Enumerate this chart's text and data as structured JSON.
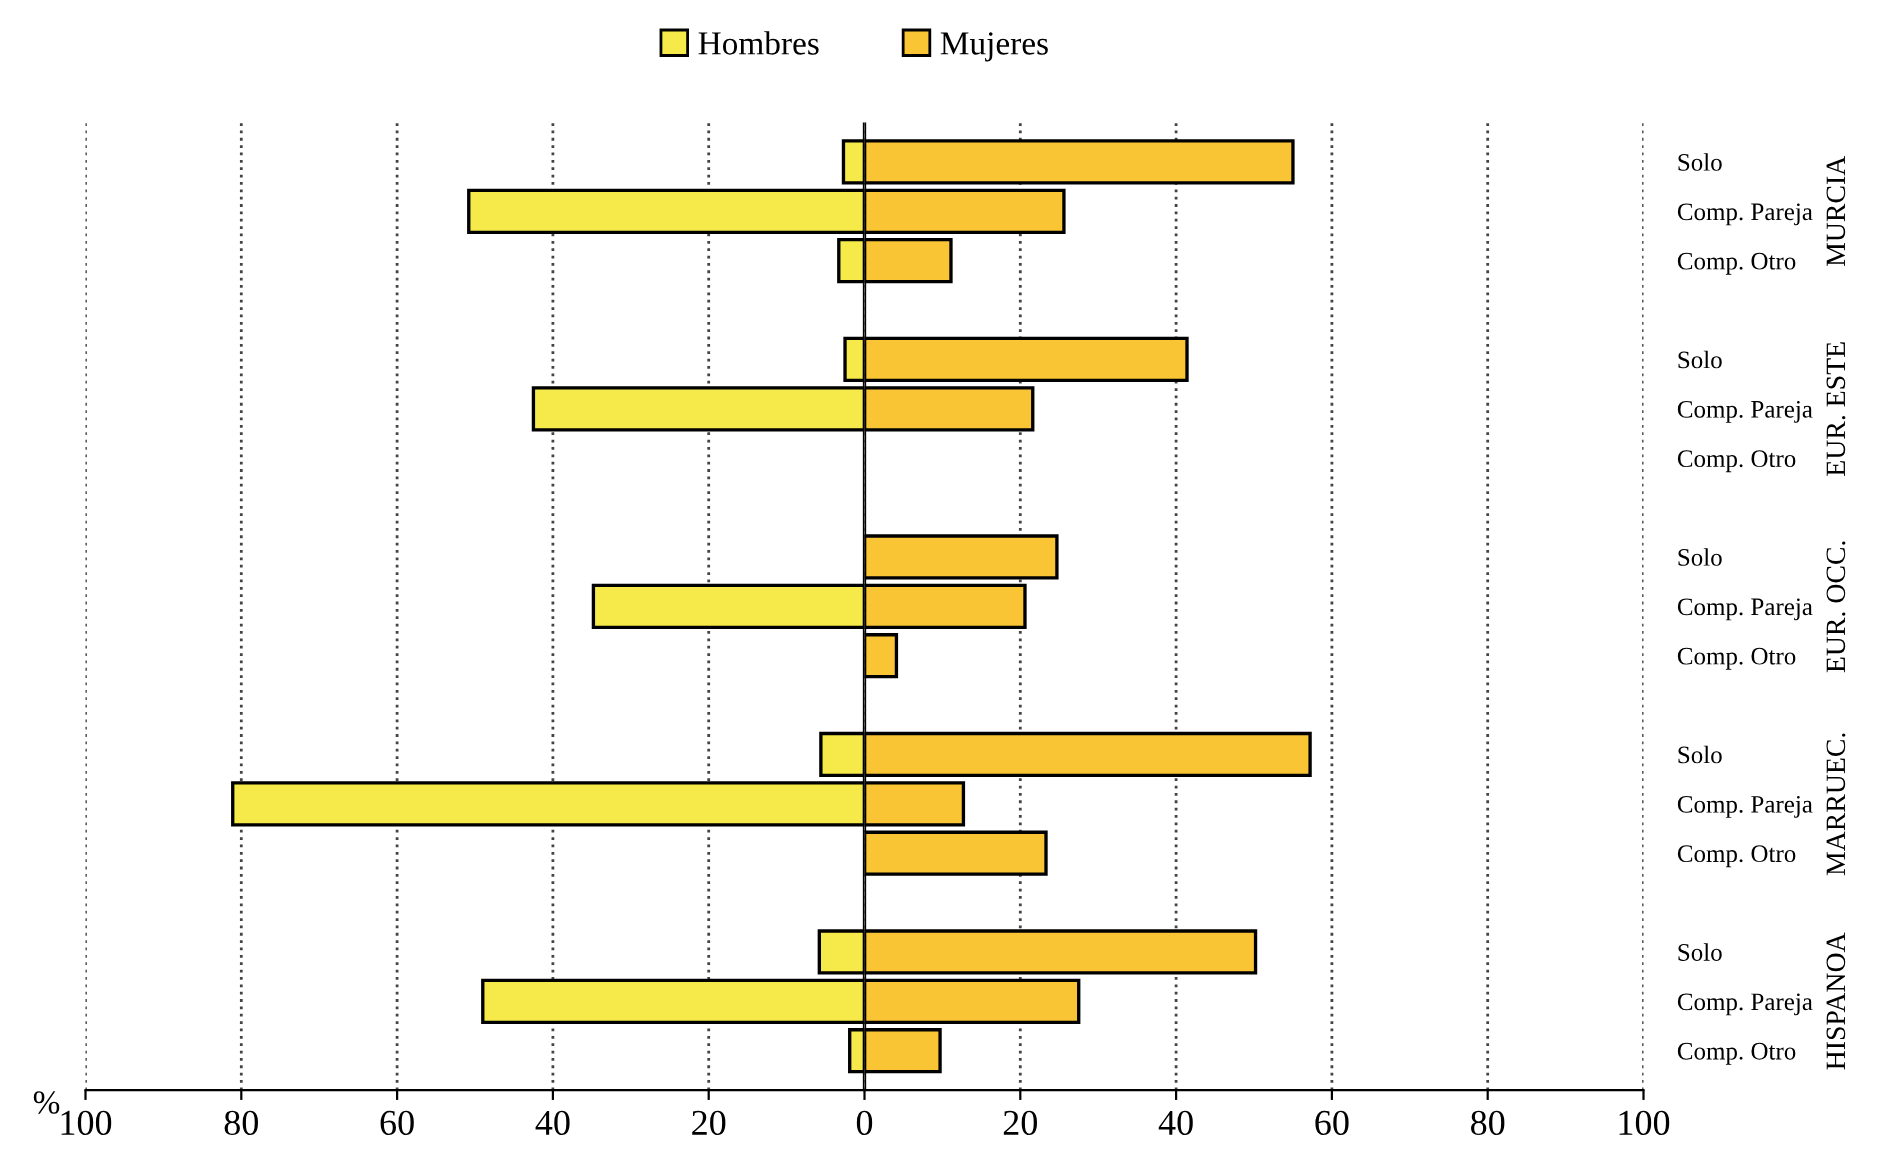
{
  "chart_data": [
    {
      "type": "bar",
      "orientation": "horizontal",
      "xlabel": "%",
      "tick_labels": "x",
      "categories": [
        null,
        null,
        null,
        null,
        null,
        null,
        null,
        null,
        null,
        null,
        null,
        null,
        null,
        null,
        null,
        null,
        null,
        null,
        null
      ],
      "series": [
        {
          "name": "Hombres",
          "color": "#f5ea4a",
          "values": [
            2.7,
            50.8,
            3.3,
            null,
            2.5,
            42.5,
            null,
            null,
            null,
            34.8,
            null,
            null,
            5.6,
            81.1,
            null,
            null,
            5.8,
            49,
            1.9
          ]
        }
      ],
      "xlim": [
        100,
        0
      ],
      "xticks": [
        100,
        80,
        60,
        40,
        20
      ],
      "grid": "x",
      "legend": "top"
    },
    {
      "type": "bar",
      "orientation": "horizontal",
      "annotations": [
        "MURCIA",
        "EUR. ESTE",
        "EUR. OCC.",
        "MARRUEC.",
        "HISPANOA"
      ],
      "categories": [
        "Solo",
        "Comp. Pareja",
        "Comp. Otro",
        null,
        "Solo",
        "Comp. Pareja",
        "Comp. Otro",
        null,
        "Solo",
        "Comp. Pareja",
        "Comp. Otro",
        null,
        "Solo",
        "Comp. Pareja",
        "Comp. Otro",
        null,
        "Solo",
        "Comp. Pareja",
        "Comp. Otro"
      ],
      "series": [
        {
          "name": "Mujeres",
          "color": "#f9c535",
          "values": [
            55,
            25.6,
            11.1,
            null,
            41.4,
            21.6,
            null,
            null,
            24.7,
            20.6,
            4.1,
            null,
            57.2,
            12.7,
            23.3,
            null,
            50.2,
            27.5,
            9.7
          ]
        }
      ],
      "xlim": [
        0,
        100
      ],
      "xticks": [
        0,
        20,
        40,
        60,
        80,
        100
      ],
      "grid": "x",
      "legend": "top"
    }
  ]
}
